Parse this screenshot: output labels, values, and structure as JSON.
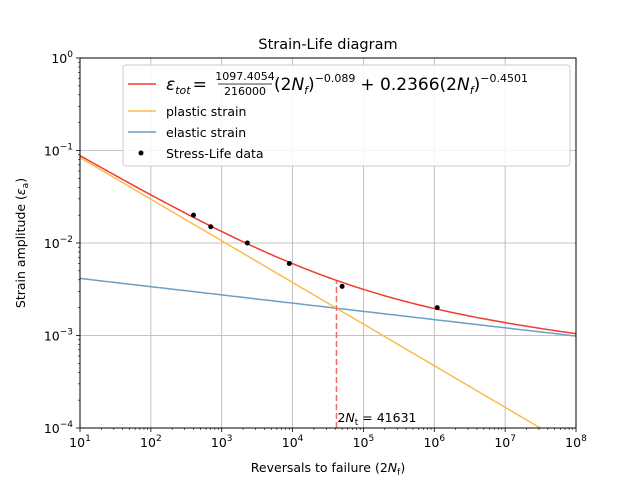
{
  "chart_data": {
    "type": "line",
    "title": "Strain-Life diagram",
    "xlabel_main": "Reversals to failure (2",
    "xlabel_var": "N",
    "xlabel_sub": "f",
    "xlabel_end": ")",
    "ylabel_main": "Strain amplitude (",
    "ylabel_var": "ε",
    "ylabel_sub": "a",
    "ylabel_end": ")",
    "x_scale": "log",
    "y_scale": "log",
    "xlim": [
      10,
      100000000
    ],
    "ylim": [
      0.0001,
      1
    ],
    "x_ticks": [
      {
        "base": "10",
        "exp": "1",
        "value": 10
      },
      {
        "base": "10",
        "exp": "2",
        "value": 100
      },
      {
        "base": "10",
        "exp": "3",
        "value": 1000
      },
      {
        "base": "10",
        "exp": "4",
        "value": 10000
      },
      {
        "base": "10",
        "exp": "5",
        "value": 100000
      },
      {
        "base": "10",
        "exp": "6",
        "value": 1000000
      },
      {
        "base": "10",
        "exp": "7",
        "value": 10000000
      },
      {
        "base": "10",
        "exp": "8",
        "value": 100000000
      }
    ],
    "y_ticks": [
      {
        "base": "10",
        "exp": "−4",
        "value": 0.0001
      },
      {
        "base": "10",
        "exp": "−3",
        "value": 0.001
      },
      {
        "base": "10",
        "exp": "−2",
        "value": 0.01
      },
      {
        "base": "10",
        "exp": "−1",
        "value": 0.1
      },
      {
        "base": "10",
        "exp": "0",
        "value": 1
      }
    ],
    "grid": true,
    "legend_placement": "upper right",
    "series": [
      {
        "key": "total",
        "name": "ε_tot = 1097.4054/216000 (2N_f)^−0.089 + 0.2366 (2N_f)^−0.4501",
        "color": "#f03b32",
        "elastic_coef": 0.0050806,
        "elastic_exp": -0.089,
        "plastic_coef": 0.2366,
        "plastic_exp": -0.4501
      },
      {
        "key": "plastic",
        "name": "plastic strain",
        "color": "#fbbc4c",
        "coef": 0.2366,
        "exp": -0.4501
      },
      {
        "key": "elastic",
        "name": "elastic strain",
        "color": "#6d9ec4",
        "coef": 0.0050806,
        "exp": -0.089
      }
    ],
    "legend": {
      "total": {
        "eps": "ε",
        "eps_sub": "tot",
        "eq": "=",
        "num": "1097.4054",
        "den": "216000",
        "term1": "(2",
        "n1": "N",
        "n1_sub": "f",
        "p1": ")",
        "exp1": "−0.089",
        "plus": "+ 0.2366(2",
        "n2": "N",
        "n2_sub": "f",
        "p2": ")",
        "exp2": "−0.4501"
      },
      "plastic": "plastic strain",
      "elastic": "elastic strain",
      "scatter": "Stress-Life data"
    },
    "scatter": {
      "name": "Stress-Life data",
      "color": "#000000",
      "points": [
        {
          "x": 400,
          "y": 0.02
        },
        {
          "x": 700,
          "y": 0.015
        },
        {
          "x": 2300,
          "y": 0.01
        },
        {
          "x": 9000,
          "y": 0.006
        },
        {
          "x": 50000,
          "y": 0.0034
        },
        {
          "x": 1100000,
          "y": 0.002
        }
      ]
    },
    "transition": {
      "x": 41631,
      "color": "#f03b32",
      "label_pre": "2",
      "label_var": "N",
      "label_sub": "t",
      "label_post": " = 41631"
    }
  }
}
